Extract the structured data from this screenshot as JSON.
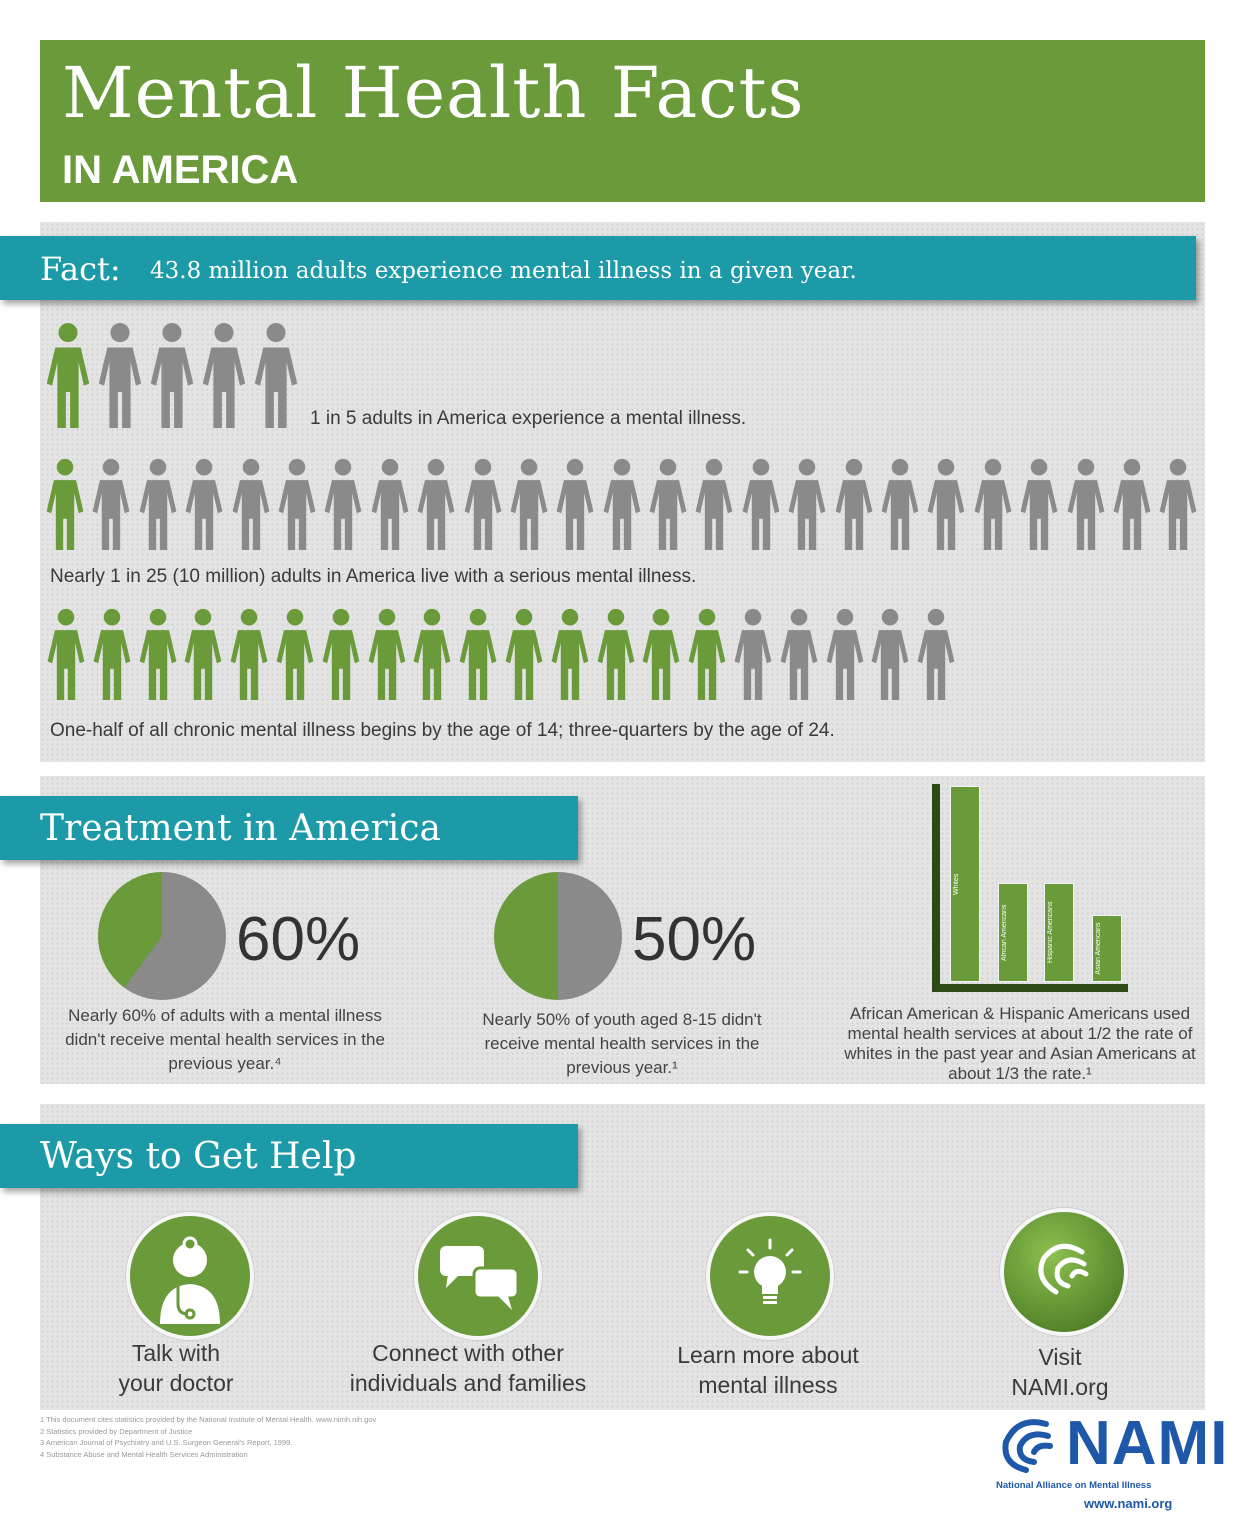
{
  "header": {
    "title": "Mental Health Facts",
    "subtitle": "IN AMERICA"
  },
  "fact": {
    "label": "Fact:",
    "text": "43.8 million adults experience mental illness in a given year."
  },
  "people_rows": [
    {
      "total": 5,
      "highlighted": 1,
      "caption": "1 in 5 adults in America experience a mental illness."
    },
    {
      "total": 25,
      "highlighted": 1,
      "caption": "Nearly 1 in 25 (10 million) adults in America live with a serious mental illness."
    },
    {
      "total": 20,
      "highlighted": 15,
      "caption": "One-half of all chronic mental illness begins by the age of 14; three-quarters by the age of 24."
    }
  ],
  "treatment": {
    "title": "Treatment in America",
    "adults": {
      "percent_label": "60%",
      "value": 60,
      "text": "Nearly 60% of adults with a mental illness didn't receive mental health services in the previous year.⁴"
    },
    "youth": {
      "percent_label": "50%",
      "value": 50,
      "text": "Nearly 50% of youth aged 8-15 didn't receive mental health services in the previous year.¹"
    }
  },
  "chart_data": {
    "type": "bar",
    "categories": [
      "Whites",
      "African Americans",
      "Hispanic Americans",
      "Asian Americans"
    ],
    "values": [
      1,
      0.5,
      0.5,
      0.333
    ],
    "title": "",
    "xlabel": "",
    "ylabel": "",
    "caption": "African American & Hispanic Americans used mental health services at about 1/2 the rate of whites in the past year and Asian Americans at about 1/3 the rate.¹"
  },
  "ways": {
    "title": "Ways to Get Help",
    "items": [
      {
        "icon": "doctor-icon",
        "label1": "Talk with",
        "label2": "your doctor"
      },
      {
        "icon": "speech-bubbles-icon",
        "label1": "Connect with other",
        "label2": "individuals and families"
      },
      {
        "icon": "lightbulb-icon",
        "label1": "Learn more about",
        "label2": "mental illness"
      },
      {
        "icon": "nami-logo-icon",
        "label1": "Visit",
        "label2": "NAMI.org"
      }
    ]
  },
  "footnotes": [
    "1 This document cites statistics provided by the National Institute of Mental Health. www.nimh.nih.gov",
    "2 Statistics provided by Department of Justice",
    "3 American Journal of Psychiatry and U.S. Surgeon General's Report, 1999.",
    "4 Substance Abuse and Mental Health Services Administration"
  ],
  "logo": {
    "word": "NAMI",
    "tagline": "National Alliance on Mental Illness",
    "url": "www.nami.org"
  },
  "colors": {
    "green": "#6a9a3a",
    "gray": "#8a8a8a",
    "teal": "#1d9aa8",
    "blue": "#1f58a8"
  }
}
